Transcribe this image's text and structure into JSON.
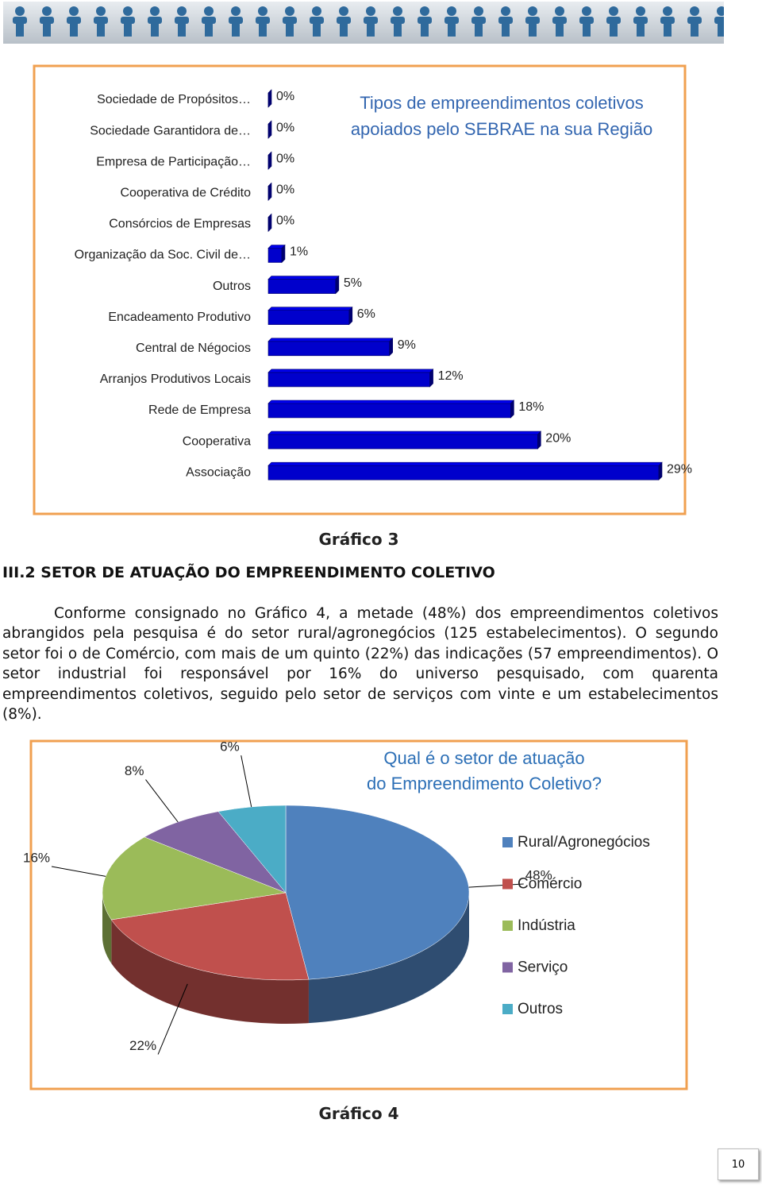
{
  "chart_data": [
    {
      "type": "bar",
      "orientation": "horizontal",
      "title": [
        "Tipos de empreendimentos coletivos",
        "apoiados pelo SEBRAE na sua Região"
      ],
      "categories": [
        "Sociedade de Propósitos…",
        "Sociedade Garantidora de…",
        "Empresa de Participação…",
        "Cooperativa de Crédito",
        "Consórcios de Empresas",
        "Organização da Soc. Civil de…",
        "Outros",
        "Encadeamento Produtivo",
        "Central de Négocios",
        "Arranjos Produtivos Locais",
        "Rede de Empresa",
        "Cooperativa",
        "Associação"
      ],
      "values": [
        0,
        0,
        0,
        0,
        0,
        1,
        5,
        6,
        9,
        12,
        18,
        20,
        29
      ],
      "value_labels": [
        "0%",
        "0%",
        "0%",
        "0%",
        "0%",
        "1%",
        "5%",
        "6%",
        "9%",
        "12%",
        "18%",
        "20%",
        "29%"
      ],
      "color": "#0000cc"
    },
    {
      "type": "pie",
      "title": [
        "Qual é o setor de atuação",
        "do Empreendimento Coletivo?"
      ],
      "categories": [
        "Rural/Agronegócios",
        "Comércio",
        "Indústria",
        "Serviço",
        "Outros"
      ],
      "values": [
        48,
        22,
        16,
        8,
        6
      ],
      "value_labels": [
        "48%",
        "22%",
        "16%",
        "8%",
        "6%"
      ],
      "colors": [
        "#4f81bd",
        "#c0504d",
        "#9bbb59",
        "#8064a2",
        "#4bacc6"
      ],
      "legend": "right"
    }
  ],
  "captions": [
    "Gráfico 3",
    "Gráfico 4"
  ],
  "section_heading": "III.2 SETOR DE ATUAÇÃO DO EMPREENDIMENTO COLETIVO",
  "paragraph": "Conforme consignado no Gráfico 4, a metade (48%) dos empreendimentos coletivos abrangidos pela pesquisa é do setor rural/agronegócios (125 estabelecimentos). O segundo setor foi o de Comércio, com mais de um quinto (22%) das indicações (57 empreendimentos). O setor industrial foi responsável por 16% do universo pesquisado, com quarenta empreendimentos coletivos, seguido pelo setor de serviços com vinte e um estabelecimentos (8%).",
  "page_number": 10
}
